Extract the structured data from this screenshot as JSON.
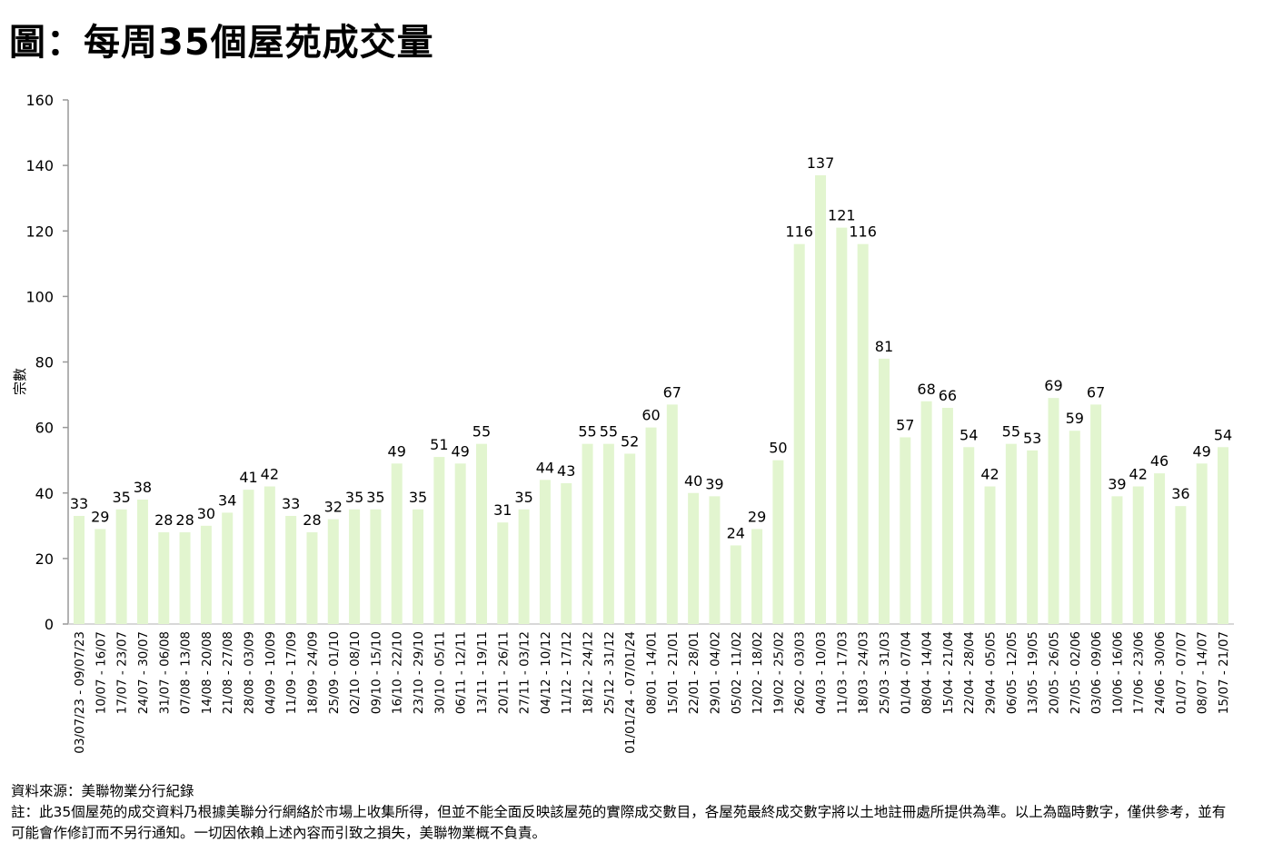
{
  "title": "圖：每周35個屋苑成交量",
  "chart_data": {
    "type": "bar",
    "title": "圖：每周35個屋苑成交量",
    "xlabel": "",
    "ylabel": "宗數",
    "ylim": [
      0,
      160
    ],
    "yticks": [
      0,
      20,
      40,
      60,
      80,
      100,
      120,
      140,
      160
    ],
    "grid": false,
    "bar_color": "#e2f5cf",
    "categories": [
      "03/07/23 - 09/07/23",
      "10/07 - 16/07",
      "17/07 - 23/07",
      "24/07 - 30/07",
      "31/07 - 06/08",
      "07/08 - 13/08",
      "14/08 - 20/08",
      "21/08 - 27/08",
      "28/08 - 03/09",
      "04/09 - 10/09",
      "11/09 - 17/09",
      "18/09 - 24/09",
      "25/09 - 01/10",
      "02/10 - 08/10",
      "09/10 - 15/10",
      "16/10 - 22/10",
      "23/10 - 29/10",
      "30/10 - 05/11",
      "06/11 - 12/11",
      "13/11 - 19/11",
      "20/11 - 26/11",
      "27/11 - 03/12",
      "04/12 - 10/12",
      "11/12 - 17/12",
      "18/12 - 24/12",
      "25/12 - 31/12",
      "01/01/24 - 07/01/24",
      "08/01 - 14/01",
      "15/01 - 21/01",
      "22/01 - 28/01",
      "29/01 - 04/02",
      "05/02 - 11/02",
      "12/02 - 18/02",
      "19/02 - 25/02",
      "26/02 - 03/03",
      "04/03 - 10/03",
      "11/03 - 17/03",
      "18/03 - 24/03",
      "25/03 - 31/03",
      "01/04 - 07/04",
      "08/04 - 14/04",
      "15/04 - 21/04",
      "22/04 - 28/04",
      "29/04 - 05/05",
      "06/05 - 12/05",
      "13/05 - 19/05",
      "20/05 - 26/05",
      "27/05 - 02/06",
      "03/06 - 09/06",
      "10/06 - 16/06",
      "17/06 - 23/06",
      "24/06 - 30/06",
      "01/07 - 07/07",
      "08/07 - 14/07",
      "15/07 - 21/07"
    ],
    "values": [
      33,
      29,
      35,
      38,
      28,
      28,
      30,
      34,
      41,
      42,
      33,
      28,
      32,
      35,
      35,
      49,
      35,
      51,
      49,
      55,
      31,
      35,
      44,
      43,
      55,
      55,
      52,
      60,
      67,
      40,
      39,
      24,
      29,
      50,
      116,
      137,
      121,
      116,
      81,
      57,
      68,
      66,
      54,
      42,
      55,
      53,
      69,
      59,
      67,
      39,
      42,
      46,
      36,
      49,
      54
    ]
  },
  "footer": {
    "source": "資料來源：美聯物業分行紀錄",
    "note": "註：此35個屋苑的成交資料乃根據美聯分行網絡於市場上收集所得，但並不能全面反映該屋苑的實際成交數目，各屋苑最終成交數字將以土地註冊處所提供為準。以上為臨時數字，僅供參考，並有可能會作修訂而不另行通知。一切因依賴上述內容而引致之損失，美聯物業概不負責。"
  }
}
